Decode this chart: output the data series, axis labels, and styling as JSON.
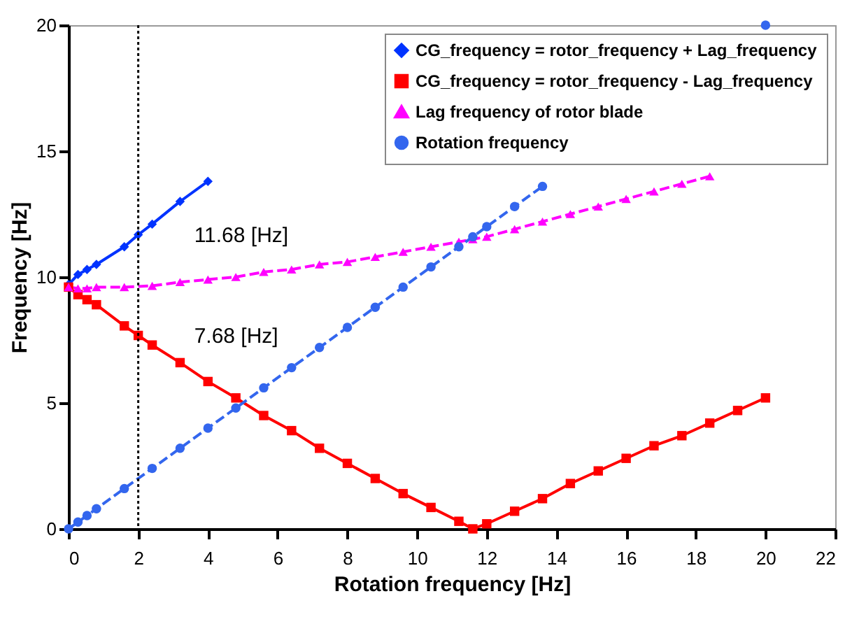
{
  "chart_data": {
    "type": "line",
    "xlabel": "Rotation frequency [Hz]",
    "ylabel": "Frequency [Hz]",
    "xlim": [
      0,
      22
    ],
    "xticks": [
      0,
      2,
      4,
      6,
      8,
      10,
      12,
      14,
      16,
      18,
      20,
      22
    ],
    "ylim": [
      0,
      20
    ],
    "yticks": [
      0,
      5,
      10,
      15,
      20
    ],
    "grid": false,
    "legend": "top right",
    "series": [
      {
        "name": "CG_frequency = rotor_frequency + Lag_frequency",
        "color": "#0033ff",
        "marker": "diamond",
        "line_style": "solid",
        "x": [
          0,
          0.27,
          0.53,
          0.8,
          1.6,
          2,
          2.4,
          3.2,
          4
        ],
        "values": [
          9.7,
          10.1,
          10.3,
          10.5,
          11.2,
          11.68,
          12.1,
          13.0,
          13.8
        ]
      },
      {
        "name": "CG_frequency = rotor_frequency  - Lag_frequency",
        "color": "#ff0000",
        "marker": "square",
        "line_style": "solid",
        "x": [
          0,
          0.27,
          0.53,
          0.8,
          1.6,
          2,
          2.4,
          3.2,
          4,
          4.8,
          5.6,
          6.4,
          7.2,
          8,
          8.8,
          9.6,
          10.4,
          11.2,
          11.6,
          12,
          12.8,
          13.6,
          14.4,
          15.2,
          16,
          16.8,
          17.6,
          18.4,
          19.2,
          20
        ],
        "values": [
          9.6,
          9.3,
          9.1,
          8.9,
          8.06,
          7.68,
          7.3,
          6.6,
          5.85,
          5.2,
          4.5,
          3.9,
          3.2,
          2.6,
          2.0,
          1.4,
          0.85,
          0.3,
          0.0,
          0.2,
          0.7,
          1.2,
          1.8,
          2.3,
          2.8,
          3.3,
          3.7,
          4.2,
          4.7,
          5.2
        ]
      },
      {
        "name": "Lag frequency of rotor blade",
        "color": "#ff00ff",
        "marker": "triangle",
        "line_style": "dashed",
        "x": [
          0,
          0.27,
          0.53,
          0.8,
          1.6,
          2.4,
          3.2,
          4,
          4.8,
          5.6,
          6.4,
          7.2,
          8,
          8.8,
          9.6,
          10.4,
          11.2,
          11.6,
          12,
          12.8,
          13.6,
          14.4,
          15.2,
          16,
          16.8,
          17.6,
          18.4
        ],
        "values": [
          9.6,
          9.55,
          9.55,
          9.6,
          9.6,
          9.65,
          9.8,
          9.9,
          10.0,
          10.2,
          10.3,
          10.5,
          10.6,
          10.8,
          11.0,
          11.2,
          11.4,
          11.5,
          11.6,
          11.9,
          12.2,
          12.5,
          12.8,
          13.1,
          13.4,
          13.7,
          14.0
        ]
      },
      {
        "name": "Rotation frequency",
        "color": "#3366ee",
        "marker": "circle",
        "line_style": "dashed",
        "x": [
          0,
          0.27,
          0.53,
          0.8,
          1.6,
          2.4,
          3.2,
          4,
          4.8,
          5.6,
          6.4,
          7.2,
          8,
          8.8,
          9.6,
          10.4,
          11.2,
          11.6,
          12,
          12.8,
          13.6,
          16.8,
          20
        ],
        "values": [
          0,
          0.27,
          0.53,
          0.8,
          1.6,
          2.4,
          3.2,
          4,
          4.8,
          5.6,
          6.4,
          7.2,
          8,
          8.8,
          9.6,
          10.4,
          11.2,
          11.6,
          12,
          12.8,
          13.6,
          null,
          20
        ]
      }
    ],
    "ref_lines": [
      {
        "axis": "x",
        "value": 2,
        "color": "#000000",
        "line_style": "dotted"
      }
    ],
    "annotations": [
      {
        "text": "11.68 [Hz]",
        "x": 2,
        "y": 11.68
      },
      {
        "text": "7.68 [Hz]",
        "x": 2,
        "y": 7.68
      }
    ]
  }
}
